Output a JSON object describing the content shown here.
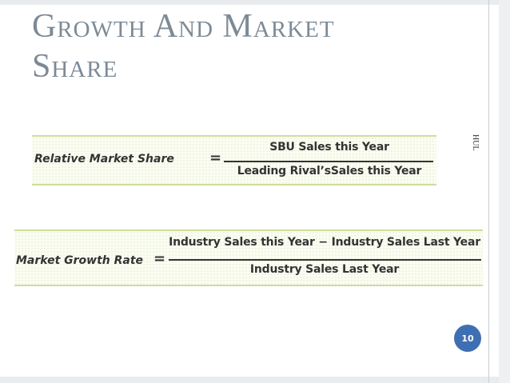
{
  "slide": {
    "title_line1": "Growth And Market",
    "title_line2": "Share",
    "side_label": "HUL",
    "page_number": "10"
  },
  "formula_relative_share": {
    "lhs": "Relative Market Share",
    "equals": "=",
    "numerator": "SBU Sales this Year",
    "denominator": "Leading Rival’sSales this Year"
  },
  "formula_growth_rate": {
    "lhs": "Market Growth Rate",
    "equals": "=",
    "numerator": "Industry Sales this Year − Industry Sales Last Year",
    "denominator": "Industry Sales Last Year"
  }
}
